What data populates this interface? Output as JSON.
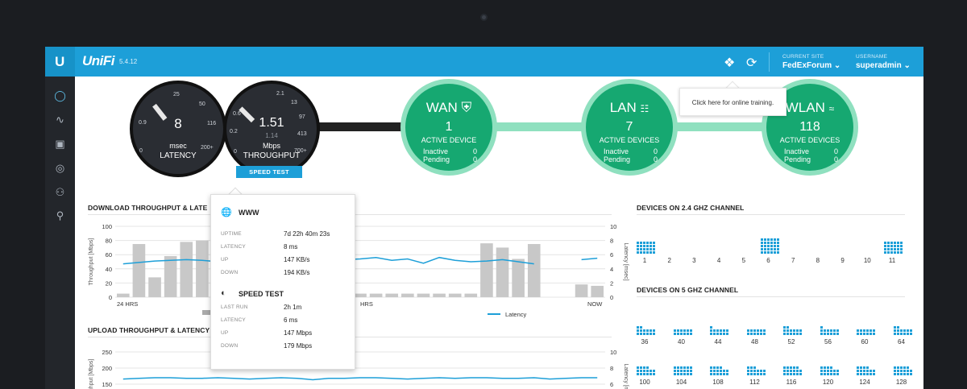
{
  "app": {
    "name": "UniFi",
    "version": "5.4.12"
  },
  "header": {
    "current_site_label": "CURRENT SITE",
    "current_site": "FedExForum",
    "username_label": "USERNAME",
    "username": "superadmin",
    "tooltip": "Click here for online training."
  },
  "sidebar": {
    "items": [
      "dashboard-icon",
      "statistics-icon",
      "map-icon",
      "devices-icon",
      "clients-icon",
      "insights-icon"
    ]
  },
  "latency_gauge": {
    "ticks": [
      "0",
      "0.9",
      "25",
      "50",
      "116",
      "200+"
    ],
    "value": "8",
    "unit": "msec",
    "label": "LATENCY"
  },
  "throughput_gauge": {
    "ticks": [
      "0",
      "0.2",
      "0.6",
      "2.1",
      "13",
      "97",
      "413",
      "700+"
    ],
    "value": "1.51",
    "secondary": "1.14",
    "unit": "Mbps",
    "label": "THROUGHPUT",
    "button": "SPEED TEST"
  },
  "wan": {
    "title": "WAN",
    "count": "1",
    "sub": "ACTIVE DEVICE",
    "inactive_label": "Inactive",
    "inactive": "0",
    "pending_label": "Pending",
    "pending": "0"
  },
  "lan": {
    "title": "LAN",
    "count": "7",
    "sub": "ACTIVE DEVICES",
    "inactive_label": "Inactive",
    "inactive": "0",
    "pending_label": "Pending",
    "pending": "0"
  },
  "wlan": {
    "title": "WLAN",
    "count": "118",
    "sub": "ACTIVE DEVICES",
    "inactive_label": "Inactive",
    "inactive": "0",
    "pending_label": "Pending",
    "pending": "0"
  },
  "download_section": {
    "title": "DOWNLOAD THROUGHPUT & LATE"
  },
  "upload_section": {
    "title": "UPLOAD THROUGHPUT & LATENCY"
  },
  "devices24": {
    "title": "DEVICES ON 2.4 GHZ CHANNEL",
    "channels": [
      "1",
      "2",
      "3",
      "4",
      "5",
      "6",
      "7",
      "8",
      "9",
      "10",
      "11"
    ],
    "counts": [
      24,
      0,
      0,
      0,
      0,
      30,
      0,
      0,
      0,
      0,
      24
    ]
  },
  "devices5": {
    "title": "DEVICES ON 5 GHZ CHANNEL",
    "row1": [
      "36",
      "40",
      "44",
      "48",
      "52",
      "56",
      "60",
      "64"
    ],
    "row1_counts": [
      14,
      12,
      13,
      12,
      14,
      13,
      12,
      14
    ],
    "row2": [
      "100",
      "104",
      "108",
      "112",
      "116",
      "120",
      "124",
      "128"
    ],
    "row2_counts": [
      16,
      18,
      16,
      15,
      17,
      16,
      16,
      17
    ]
  },
  "popup": {
    "www_title": "WWW",
    "rows": [
      {
        "label": "UPTIME",
        "value": "7d 22h 40m 23s"
      },
      {
        "label": "LATENCY",
        "value": "8 ms"
      },
      {
        "label": "UP",
        "value": "147 KB/s"
      },
      {
        "label": "DOWN",
        "value": "194 KB/s"
      }
    ],
    "speed_title": "SPEED TEST",
    "speed_rows": [
      {
        "label": "LAST RUN",
        "value": "2h 1m"
      },
      {
        "label": "LATENCY",
        "value": "6 ms"
      },
      {
        "label": "UP",
        "value": "147 Mbps"
      },
      {
        "label": "DOWN",
        "value": "179 Mbps"
      }
    ]
  },
  "chart_data": [
    {
      "type": "bar",
      "title": "DOWNLOAD THROUGHPUT & LATE",
      "ylabel": "Throughput [Mbps]",
      "y2label": "Latency [msec]",
      "y_ticks": [
        "0",
        "20",
        "40",
        "60",
        "80",
        "100"
      ],
      "y2_ticks": [
        "0",
        "2",
        "4",
        "6",
        "8",
        "10"
      ],
      "ylim": [
        0,
        100
      ],
      "y2lim": [
        0,
        10
      ],
      "x_labels": [
        "24 HRS",
        "HRS",
        "NOW"
      ],
      "legend": [
        "Latency"
      ],
      "series": [
        {
          "values": [
            5,
            75,
            28,
            58,
            78,
            80,
            78,
            74,
            70,
            72,
            6,
            6,
            5,
            5,
            5,
            5,
            5,
            5,
            5,
            5,
            5,
            5,
            5,
            76,
            70,
            54,
            75,
            0,
            0,
            18,
            16
          ]
        },
        {
          "name": "Latency",
          "values": [
            4.7,
            4.9,
            5.1,
            5.2,
            5.3,
            5.2,
            5.0,
            5.1,
            5.0,
            5.3,
            5.4,
            5.1,
            5.0,
            5.2,
            5.3,
            5.4,
            5.6,
            5.2,
            5.4,
            4.8,
            5.6,
            5.2,
            5.0,
            5.1,
            5.3,
            5.0,
            4.7,
            null,
            null,
            5.3,
            5.5
          ]
        }
      ]
    },
    {
      "type": "line",
      "title": "UPLOAD THROUGHPUT & LATENCY",
      "ylabel": "Throughput [Mbps]",
      "y2label": "Latency [msec]",
      "y_ticks": [
        "150",
        "200",
        "250"
      ],
      "y2_ticks": [
        "6",
        "8",
        "10"
      ],
      "series": [
        {
          "name": "Latency",
          "values": [
            5.6,
            5.7,
            5.8,
            5.8,
            5.7,
            5.7,
            5.8,
            5.7,
            5.6,
            5.7,
            5.8,
            5.7,
            5.5,
            5.7,
            5.7,
            5.9,
            5.8,
            5.7,
            5.6,
            5.7,
            5.8,
            5.7,
            5.9,
            5.8,
            5.7,
            5.7,
            5.8,
            5.6,
            5.7,
            5.8,
            5.8
          ]
        }
      ]
    }
  ]
}
